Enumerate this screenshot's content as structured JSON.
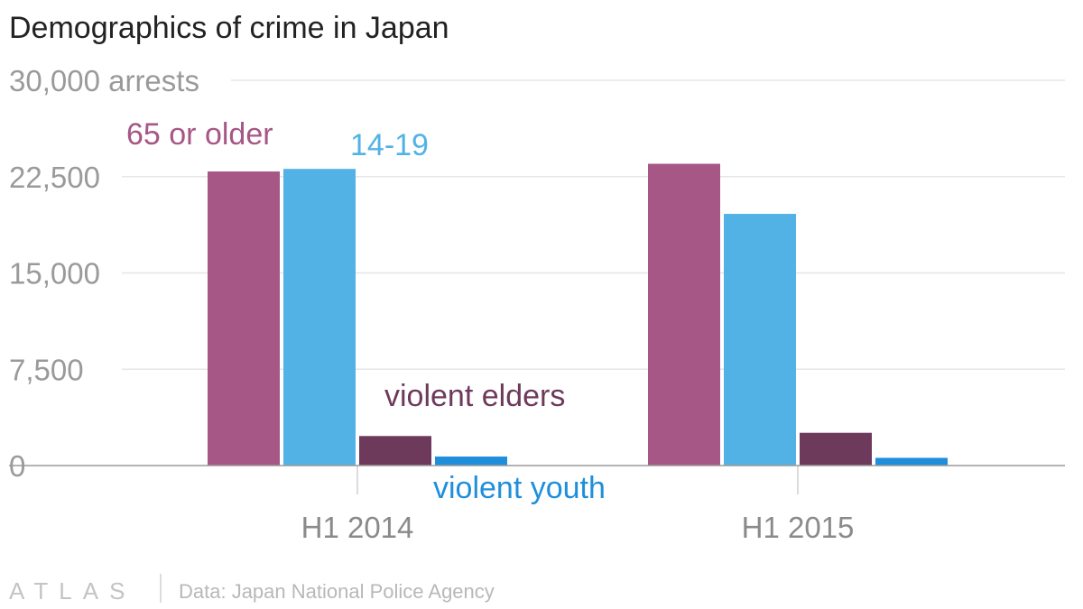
{
  "chart_data": {
    "type": "bar",
    "title": "Demographics of crime in Japan",
    "ylabel": "",
    "xlabel": "",
    "y_unit": "arrests",
    "ylim": [
      0,
      30000
    ],
    "y_ticks": [
      0,
      7500,
      15000,
      22500,
      30000
    ],
    "y_tick_labels": [
      "0",
      "7,500",
      "15,000",
      "22,500",
      "30,000 arrests"
    ],
    "grid": true,
    "categories": [
      "H1 2014",
      "H1 2015"
    ],
    "series": [
      {
        "name": "65 or older",
        "values": [
          22900,
          23500
        ],
        "color": "#a65786"
      },
      {
        "name": "14-19",
        "values": [
          23100,
          19600
        ],
        "color": "#53b2e5"
      },
      {
        "name": "violent elders",
        "values": [
          2300,
          2550
        ],
        "color": "#6e3a5c"
      },
      {
        "name": "violent youth",
        "values": [
          700,
          600
        ],
        "color": "#1f8fdb"
      }
    ]
  },
  "footer": {
    "logo": "ATLAS",
    "logo_icon": "atlas-logo",
    "source": "Data: Japan National Police Agency"
  }
}
